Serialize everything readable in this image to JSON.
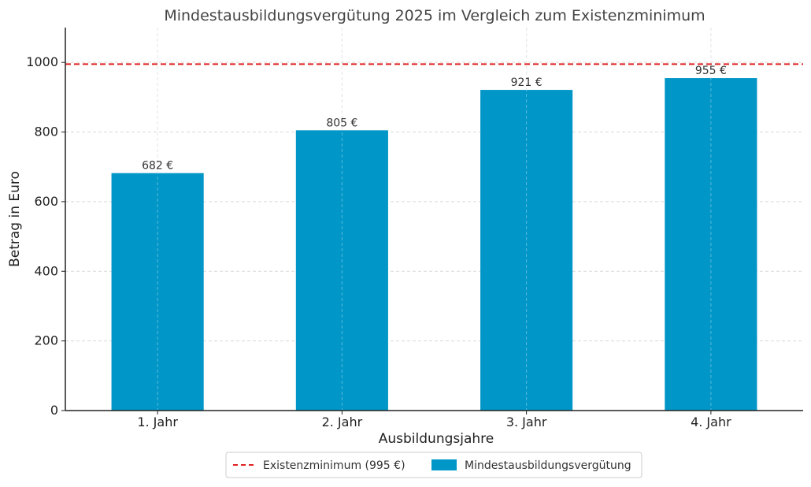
{
  "chart_data": {
    "type": "bar",
    "title": "Mindestausbildungsvergütung 2025 im Vergleich zum Existenzminimum",
    "xlabel": "Ausbildungsjahre",
    "ylabel": "Betrag in Euro",
    "categories": [
      "1. Jahr",
      "2. Jahr",
      "3. Jahr",
      "4. Jahr"
    ],
    "series": [
      {
        "name": "Mindestausbildungsvergütung",
        "values": [
          682,
          805,
          921,
          955
        ],
        "color": "#0096C7",
        "labels": [
          "682 €",
          "805 €",
          "921 €",
          "955 €"
        ]
      }
    ],
    "reference_line": {
      "name": "Existenzminimum (995 €)",
      "value": 995,
      "color": "#E02020",
      "style": "dashed"
    },
    "ylim": [
      0,
      1100
    ],
    "yticks": [
      0,
      200,
      400,
      600,
      800,
      1000
    ],
    "grid": true,
    "legend_position": "bottom-center"
  }
}
